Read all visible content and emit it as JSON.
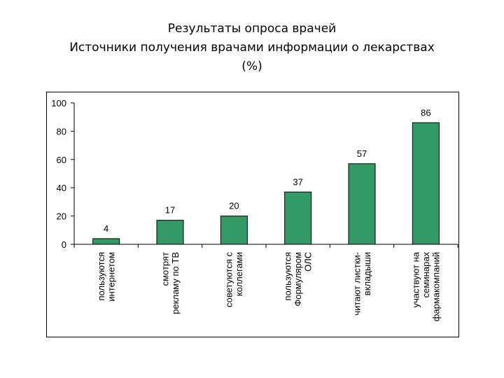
{
  "slide": {
    "title_line1": "Результаты опроса врачей",
    "title_line2": "Источники получения врачами информации о лекарствах",
    "title_line3": "(%)"
  },
  "chart_data": {
    "type": "bar",
    "title": "Источники получения врачами информации о лекарствах (%)",
    "categories": [
      [
        "пользуются",
        "интернетом"
      ],
      [
        "смотрят",
        "рекламу по ТВ"
      ],
      [
        "советуются с",
        "коллегами"
      ],
      [
        "пользуются",
        "Формуляром",
        "ОЛС"
      ],
      [
        "читают листки-",
        "вкладыши"
      ],
      [
        "участвуют на",
        "семинарах",
        "фармакомпаний"
      ]
    ],
    "values": [
      4,
      17,
      20,
      37,
      57,
      86
    ],
    "ylim": [
      0,
      100
    ],
    "yticks": [
      0,
      20,
      40,
      60,
      80,
      100
    ],
    "grid": false,
    "bar_color": "#339966"
  }
}
